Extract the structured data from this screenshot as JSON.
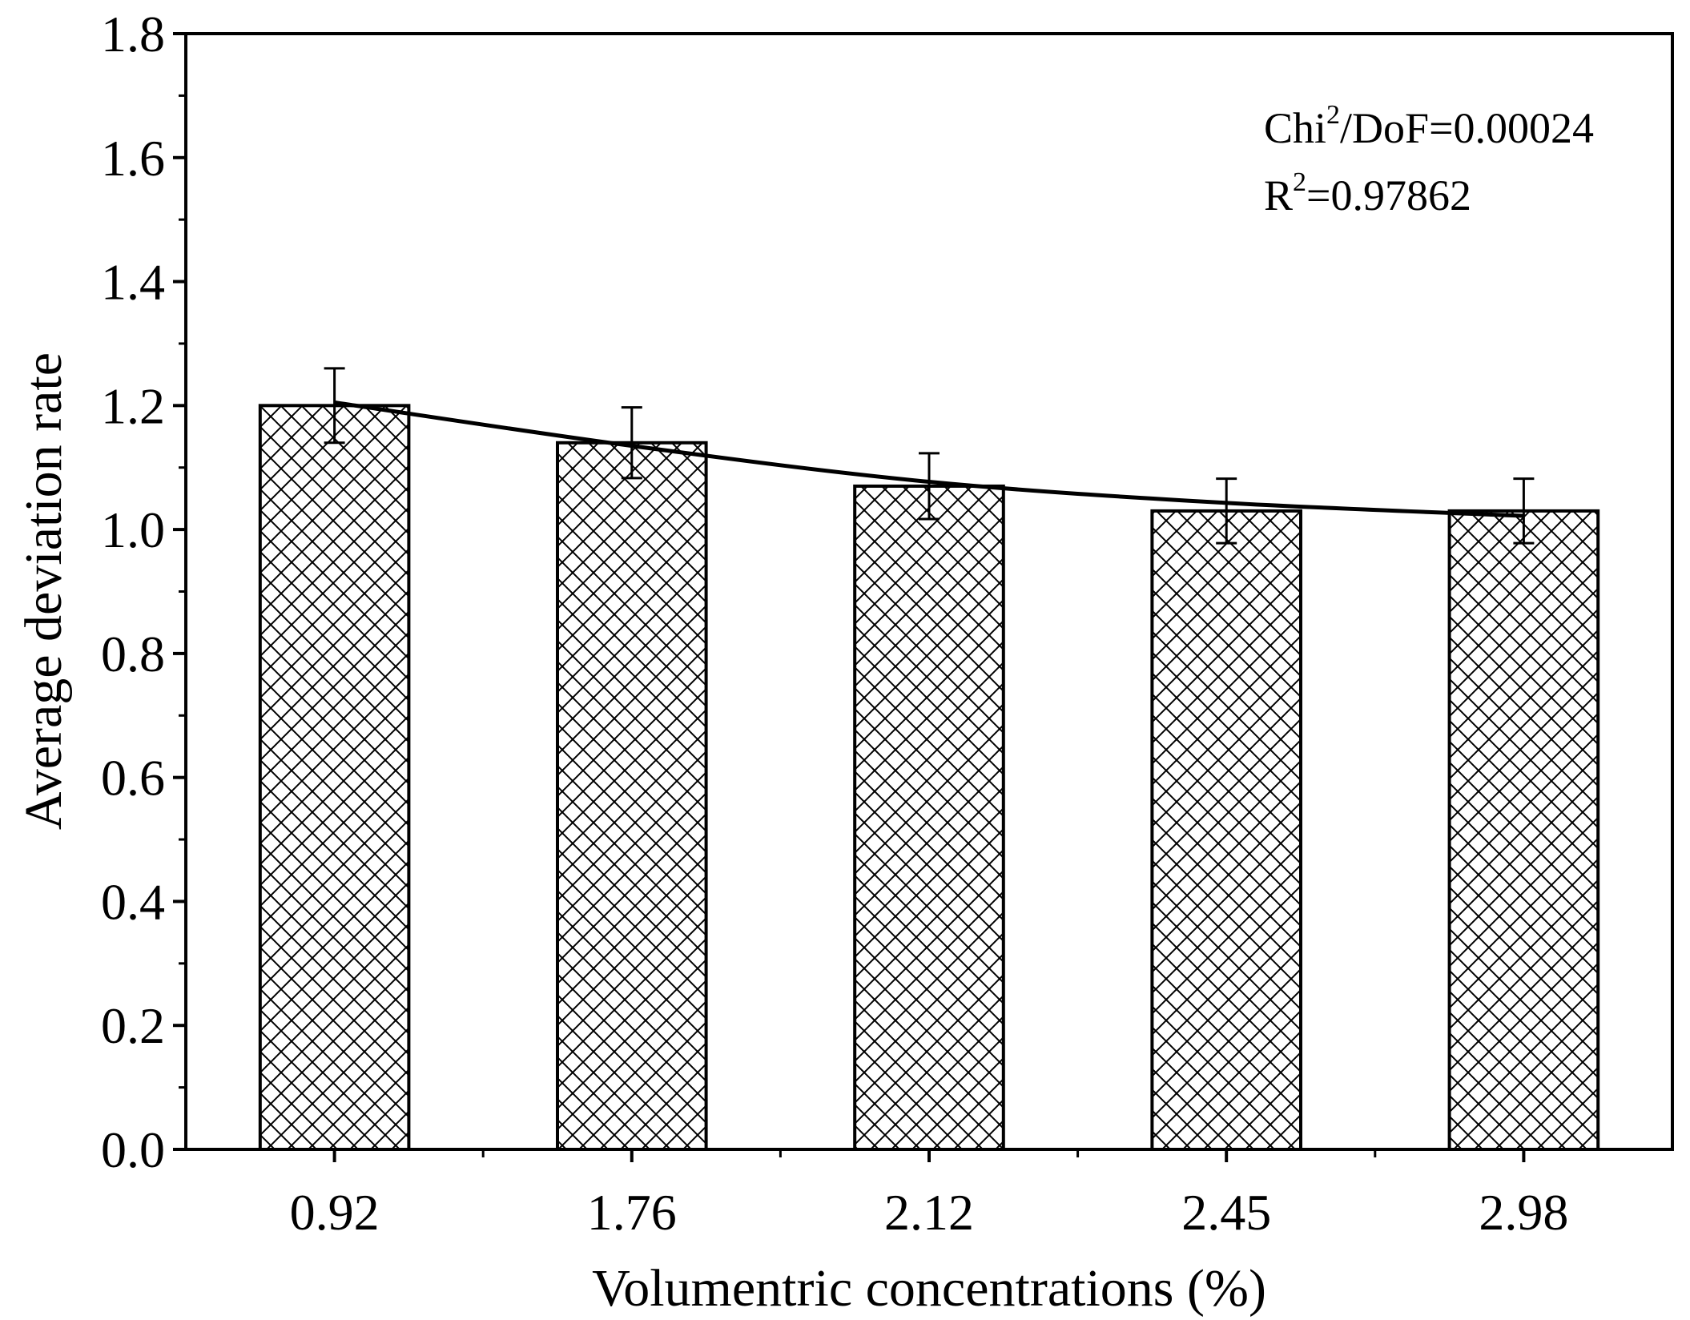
{
  "chart_data": {
    "type": "bar",
    "title": "",
    "xlabel": "Volumentric concentrations (%)",
    "ylabel": "Average deviation rate",
    "categories": [
      "0.92",
      "1.76",
      "2.12",
      "2.45",
      "2.98"
    ],
    "values": [
      1.2,
      1.14,
      1.07,
      1.03,
      1.03
    ],
    "error": [
      0.06,
      0.057,
      0.053,
      0.052,
      0.052
    ],
    "fit_line": [
      1.205,
      1.135,
      1.077,
      1.043,
      1.022
    ],
    "ylim": [
      0.0,
      1.8
    ],
    "yticks": [
      "0.0",
      "0.2",
      "0.4",
      "0.6",
      "0.8",
      "1.0",
      "1.2",
      "1.4",
      "1.6",
      "1.8"
    ],
    "bar_pattern": "cross-hatch",
    "grid": false,
    "annotations": {
      "chi_base": "Chi",
      "chi_sup": "2",
      "chi_rest": "/DoF=0.00024",
      "r_base": "R",
      "r_sup": "2",
      "r_rest": "=0.97862"
    }
  }
}
